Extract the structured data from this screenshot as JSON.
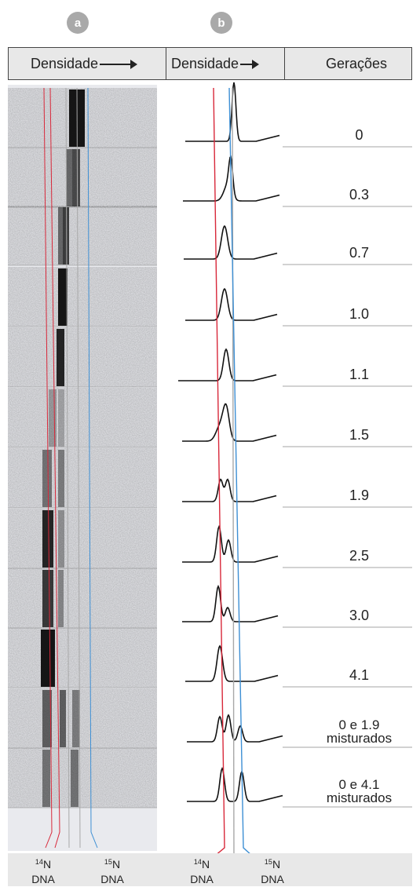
{
  "badges": {
    "a": "a",
    "b": "b"
  },
  "header": {
    "col_a": "Densidade",
    "col_b": "Densidade",
    "col_c": "Gerações"
  },
  "rows": [
    {
      "generation": "0"
    },
    {
      "generation": "0.3"
    },
    {
      "generation": "0.7"
    },
    {
      "generation": "1.0"
    },
    {
      "generation": "1.1"
    },
    {
      "generation": "1.5"
    },
    {
      "generation": "1.9"
    },
    {
      "generation": "2.5"
    },
    {
      "generation": "3.0"
    },
    {
      "generation": "4.1"
    },
    {
      "generation": "0 e 1.9",
      "note": "misturados"
    },
    {
      "generation": "0 e 4.1",
      "note": "misturados"
    }
  ],
  "footer": {
    "n14": {
      "iso": "14",
      "el": "N",
      "word": "DNA"
    },
    "n15": {
      "iso": "15",
      "el": "N",
      "word": "DNA"
    }
  },
  "colors": {
    "n14_line": "#d8283a",
    "n15_line": "#3d8fd4",
    "hybrid_line": "#a8a8a8",
    "header_bg": "#e8e8e8",
    "badge_bg": "#a9a9a9"
  }
}
